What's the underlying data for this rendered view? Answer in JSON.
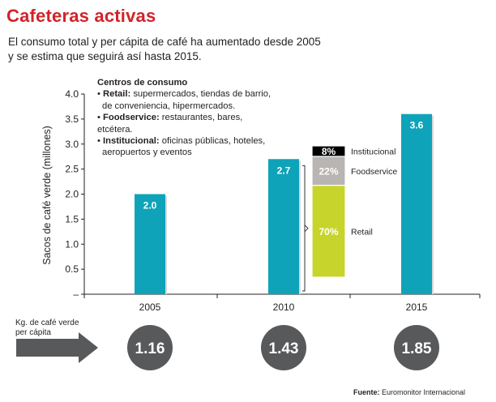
{
  "title": "Cafeteras activas",
  "subtitle": {
    "line1": "El consumo total y per cápita de café ha aumentado desde 2005",
    "line2": "y se estima que seguirá así hasta 2015."
  },
  "colors": {
    "title": "#d2232a",
    "bar": "#0fa3b9",
    "retail": "#c7d42b",
    "foodservice": "#b8b5b2",
    "institucional": "#000000",
    "circle": "#58595b",
    "arrow": "#58595b"
  },
  "note": {
    "title": "Centros de consumo",
    "retail_term": "Retail:",
    "retail_text": " supermercados, tiendas de barrio,",
    "retail_text2": "de conveniencia, hipermercados.",
    "foodservice_term": "Foodservice:",
    "foodservice_text": " restaurantes, bares,",
    "foodservice_text2": "etcétera.",
    "institucional_term": "Institucional:",
    "institucional_text": " oficinas públicas, hoteles,",
    "institucional_text2": "aeropuertos y eventos"
  },
  "per_capita": {
    "label_line1": "Kg. de café verde",
    "label_line2": "per cápita",
    "values": [
      "1.16",
      "1.43",
      "1.85"
    ]
  },
  "source": {
    "label": "Fuente:",
    "text": " Euromonitor Internacional"
  },
  "chart_data": [
    {
      "type": "bar",
      "categories": [
        "2005",
        "2010",
        "2015"
      ],
      "values": [
        2.0,
        2.7,
        3.6
      ],
      "value_labels": [
        "2.0",
        "2.7",
        "3.6"
      ],
      "ylabel": "Sacos de café verde (millones)",
      "ylim": [
        0,
        4.0
      ],
      "yticks": [
        "4.0",
        "3.5",
        "3.0",
        "2.5",
        "2.0",
        "1.5",
        "1.0",
        "0.5",
        "–"
      ],
      "ytick_values": [
        4.0,
        3.5,
        3.0,
        2.5,
        2.0,
        1.5,
        1.0,
        0.5,
        0
      ],
      "grid": false
    },
    {
      "type": "bar",
      "stacked": true,
      "category": "2010",
      "series": [
        {
          "name": "Retail",
          "value": 70,
          "label": "70%"
        },
        {
          "name": "Foodservice",
          "value": 22,
          "label": "22%"
        },
        {
          "name": "Institucional",
          "value": 8,
          "label": "8%"
        }
      ]
    }
  ]
}
